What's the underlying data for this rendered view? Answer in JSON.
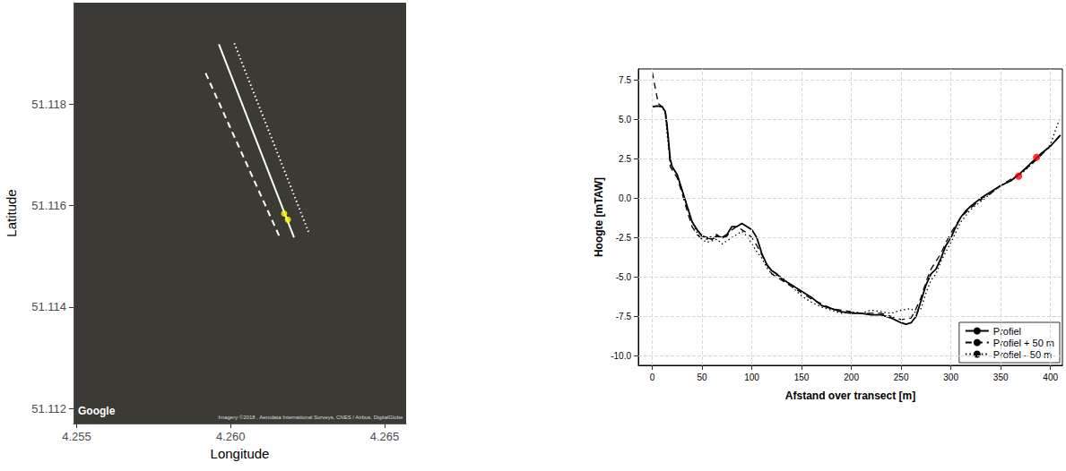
{
  "chart_data": [
    {
      "type": "line",
      "xlabel": "Longitude",
      "ylabel": "Latitude",
      "xlim": [
        4.2549,
        4.2657
      ],
      "ylim": [
        51.1117,
        51.12
      ],
      "xticks": [
        4.255,
        {
          "value": 4.26,
          "label": "4.260"
        },
        4.265
      ],
      "yticks": [
        51.112,
        51.114,
        51.116,
        51.118
      ],
      "grid": false,
      "annotations": [
        {
          "text": "Google"
        },
        {
          "text": "Imagery ©2018 , Aerodata International Surveys, CNES / Airbus, DigitalGlobe"
        }
      ],
      "series": [
        {
          "color": "#ffffff",
          "line_style": "dashed",
          "x": [
            4.25919,
            4.2616
          ],
          "values": [
            51.11861,
            51.11537
          ]
        },
        {
          "color": "#ffffff",
          "line_style": "solid",
          "x": [
            4.25962,
            4.26206
          ],
          "values": [
            51.11918,
            51.11537
          ]
        },
        {
          "color": "#ffffff",
          "line_style": "dotted",
          "x": [
            4.26012,
            4.26253
          ],
          "values": [
            51.1192,
            51.11548
          ]
        },
        {
          "type": "scatter",
          "color": "#ffff00",
          "x": [
            4.26174,
            4.26186
          ],
          "values": [
            51.11584,
            51.11572
          ]
        }
      ]
    },
    {
      "type": "line",
      "xlabel": "Afstand over transect [m]",
      "ylabel": "Hoogte [mTAW]",
      "xlim": [
        -14,
        412
      ],
      "ylim": [
        -10.6,
        8.2
      ],
      "xticks": [
        0,
        50,
        100,
        150,
        200,
        250,
        300,
        350,
        400
      ],
      "yticks": [
        {
          "value": -10,
          "label": "-10.0"
        },
        {
          "value": -7.5,
          "label": "-7.5"
        },
        {
          "value": -5,
          "label": "-5.0"
        },
        {
          "value": -2.5,
          "label": "-2.5"
        },
        {
          "value": 0,
          "label": "0.0"
        },
        {
          "value": 2.5,
          "label": "2.5"
        },
        {
          "value": 5,
          "label": "5.0"
        },
        {
          "value": 7.5,
          "label": "7.5"
        }
      ],
      "grid": true,
      "legend": "bottom-right",
      "series": [
        {
          "name": "Profiel",
          "color": "#000000",
          "line_style": "solid",
          "x": [
            0,
            5,
            10,
            13,
            15,
            18,
            20,
            25,
            30,
            35,
            40,
            45,
            50,
            55,
            60,
            65,
            70,
            75,
            80,
            85,
            90,
            95,
            100,
            105,
            110,
            115,
            120,
            125,
            130,
            140,
            150,
            160,
            170,
            180,
            190,
            200,
            210,
            220,
            230,
            240,
            250,
            255,
            260,
            265,
            270,
            275,
            280,
            285,
            290,
            295,
            300,
            305,
            310,
            315,
            320,
            330,
            340,
            350,
            360,
            370,
            380,
            390,
            400,
            410
          ],
          "values": [
            5.8,
            5.85,
            5.8,
            5.5,
            4.5,
            2.5,
            2.0,
            1.5,
            0.5,
            -0.5,
            -1.5,
            -2.0,
            -2.4,
            -2.5,
            -2.6,
            -2.4,
            -2.5,
            -2.3,
            -1.8,
            -1.8,
            -1.6,
            -1.8,
            -2.0,
            -2.5,
            -3.5,
            -4.2,
            -4.6,
            -4.8,
            -5.1,
            -5.5,
            -5.9,
            -6.3,
            -6.8,
            -7.0,
            -7.2,
            -7.3,
            -7.3,
            -7.4,
            -7.4,
            -7.6,
            -7.9,
            -8.0,
            -7.9,
            -7.5,
            -6.5,
            -5.5,
            -4.8,
            -4.5,
            -3.8,
            -3.0,
            -2.5,
            -1.8,
            -1.2,
            -0.8,
            -0.5,
            0.0,
            0.4,
            0.8,
            1.1,
            1.6,
            2.2,
            2.8,
            3.3,
            4.0
          ]
        },
        {
          "name": "Profiel + 50 m",
          "color": "#000000",
          "line_style": "dashed",
          "x": [
            0,
            3,
            6,
            10,
            13,
            16,
            18,
            25,
            30,
            35,
            40,
            45,
            50,
            55,
            60,
            65,
            70,
            75,
            80,
            85,
            90,
            95,
            100,
            105,
            110,
            115,
            120,
            125,
            130,
            140,
            150,
            160,
            170,
            180,
            190,
            200,
            210,
            220,
            230,
            240,
            250,
            260,
            265,
            270,
            275,
            280,
            285,
            290,
            295,
            300,
            305,
            310,
            320,
            330,
            340,
            350,
            360,
            370,
            380,
            390,
            400,
            410
          ],
          "values": [
            8.0,
            7.0,
            6.0,
            5.8,
            5.6,
            4.0,
            2.0,
            1.3,
            0.3,
            -0.8,
            -1.8,
            -2.3,
            -2.6,
            -2.6,
            -2.4,
            -2.3,
            -2.6,
            -2.4,
            -2.0,
            -1.8,
            -2.0,
            -2.2,
            -2.5,
            -3.0,
            -3.6,
            -4.2,
            -4.8,
            -5.0,
            -5.2,
            -5.6,
            -6.0,
            -6.4,
            -6.7,
            -7.0,
            -7.1,
            -7.2,
            -7.3,
            -7.3,
            -7.3,
            -7.5,
            -7.7,
            -7.6,
            -7.0,
            -6.3,
            -5.3,
            -4.5,
            -4.0,
            -3.5,
            -2.8,
            -2.2,
            -1.7,
            -1.2,
            -0.6,
            -0.1,
            0.3,
            0.8,
            1.2,
            1.6,
            2.1,
            2.7,
            3.3,
            4.0
          ]
        },
        {
          "name": "Profiel - 50 m",
          "color": "#000000",
          "line_style": "dotted",
          "x": [
            0,
            5,
            10,
            13,
            15,
            18,
            25,
            30,
            35,
            40,
            45,
            50,
            55,
            60,
            65,
            70,
            75,
            80,
            85,
            90,
            95,
            100,
            105,
            110,
            115,
            120,
            125,
            130,
            140,
            150,
            160,
            170,
            180,
            190,
            200,
            210,
            220,
            230,
            240,
            250,
            260,
            265,
            270,
            275,
            280,
            285,
            290,
            300,
            310,
            320,
            330,
            340,
            350,
            360,
            370,
            380,
            390,
            400,
            410
          ],
          "values": [
            5.8,
            5.85,
            5.8,
            5.4,
            4.0,
            2.2,
            1.5,
            0.5,
            -0.5,
            -1.5,
            -2.2,
            -2.6,
            -2.8,
            -2.7,
            -2.6,
            -2.9,
            -2.7,
            -2.5,
            -2.3,
            -2.1,
            -2.4,
            -2.9,
            -3.4,
            -3.8,
            -4.4,
            -4.8,
            -4.9,
            -5.0,
            -5.6,
            -6.2,
            -6.6,
            -6.9,
            -7.1,
            -7.3,
            -7.2,
            -7.3,
            -7.1,
            -7.2,
            -7.3,
            -7.1,
            -7.0,
            -7.3,
            -7.0,
            -6.0,
            -5.2,
            -4.8,
            -4.0,
            -2.8,
            -1.5,
            -0.7,
            -0.2,
            0.3,
            0.8,
            1.1,
            1.5,
            2.1,
            2.7,
            3.4,
            5.2
          ]
        },
        {
          "type": "scatter",
          "color": "#ff0000",
          "x": [
            368,
            386
          ],
          "values": [
            1.4,
            2.6
          ]
        }
      ]
    }
  ]
}
